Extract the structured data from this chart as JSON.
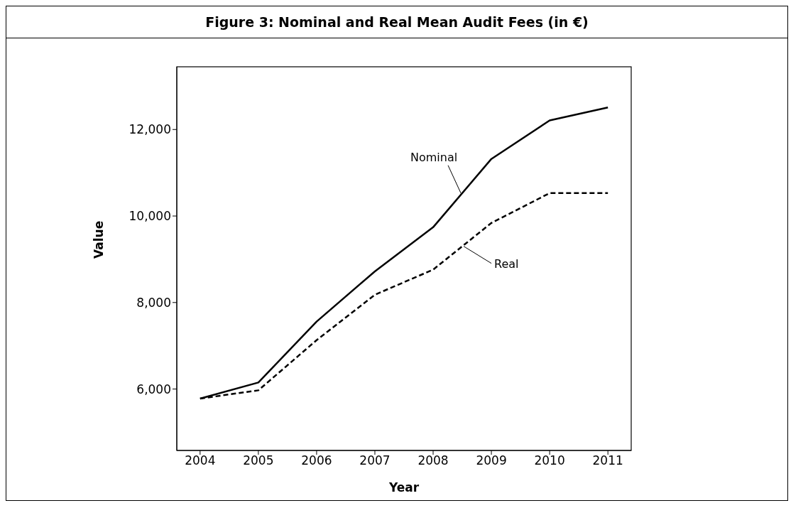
{
  "chart_data": {
    "type": "line",
    "title": "Figure 3: Nominal and Real Mean Audit Fees (in €)",
    "xlabel": "Year",
    "ylabel": "Value",
    "x": [
      2004,
      2005,
      2006,
      2007,
      2008,
      2009,
      2010,
      2011
    ],
    "series": [
      {
        "name": "Nominal",
        "color": "#000000",
        "line_style": "solid",
        "values": [
          5780,
          6150,
          7560,
          8720,
          9740,
          11320,
          12210,
          12510
        ]
      },
      {
        "name": "Real",
        "color": "#000000",
        "line_style": "dashed",
        "values": [
          5780,
          5970,
          7130,
          8180,
          8760,
          9840,
          10530,
          10530
        ]
      }
    ],
    "xlim": [
      2003.6,
      2011.4
    ],
    "xticks": [
      2004,
      2005,
      2006,
      2007,
      2008,
      2009,
      2010,
      2011
    ],
    "ylim": [
      4580,
      13450
    ],
    "yticks": [
      {
        "value": 6000,
        "label": "6,000"
      },
      {
        "value": 8000,
        "label": "8,000"
      },
      {
        "value": 10000,
        "label": "10,000"
      },
      {
        "value": 12000,
        "label": "12,000"
      }
    ],
    "grid": false,
    "marker": "none"
  }
}
